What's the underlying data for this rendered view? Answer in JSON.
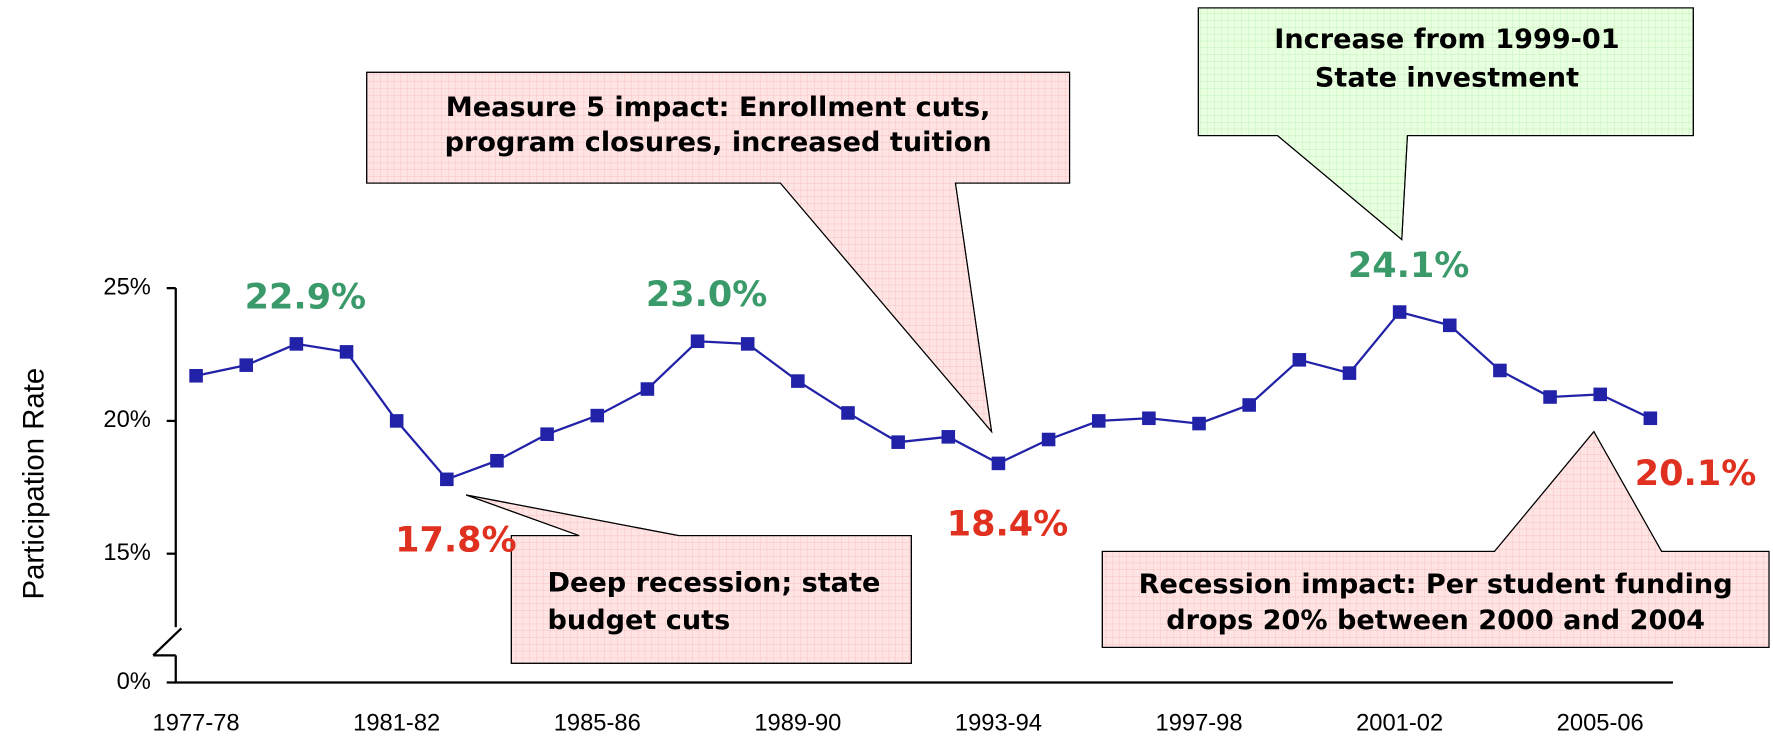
{
  "chart_data": {
    "type": "line",
    "y_axis_label": "Participation Rate",
    "categories": [
      "1977-78",
      null,
      null,
      null,
      "1981-82",
      null,
      null,
      null,
      "1985-86",
      null,
      null,
      null,
      "1989-90",
      null,
      null,
      null,
      "1993-94",
      null,
      null,
      null,
      "1997-98",
      null,
      null,
      null,
      "2001-02",
      null,
      null,
      null,
      "2005-06",
      null
    ],
    "series": [
      {
        "name": "Participation Rate",
        "color": "#2222a8",
        "values": [
          21.7,
          22.1,
          22.9,
          22.6,
          20.0,
          17.8,
          18.5,
          19.5,
          20.2,
          21.2,
          23.0,
          22.9,
          21.5,
          20.3,
          19.2,
          19.4,
          18.4,
          19.3,
          20.0,
          20.1,
          19.9,
          20.6,
          22.3,
          21.8,
          24.1,
          23.6,
          21.9,
          20.9,
          21.0,
          20.1
        ],
        "value_labels": [
          null,
          null,
          "22.9%",
          null,
          null,
          "17.8%",
          null,
          null,
          null,
          null,
          "23.0%",
          null,
          null,
          null,
          null,
          null,
          "18.4%",
          null,
          null,
          null,
          null,
          null,
          null,
          null,
          "24.1%",
          null,
          null,
          null,
          null,
          "20.1%"
        ],
        "value_label_colors": [
          null,
          null,
          "#3a9a6a",
          null,
          null,
          "#e03020",
          null,
          null,
          null,
          null,
          "#3a9a6a",
          null,
          null,
          null,
          null,
          null,
          "#e03020",
          null,
          null,
          null,
          null,
          null,
          null,
          null,
          "#3a9a6a",
          null,
          null,
          null,
          null,
          "#e03020"
        ]
      }
    ],
    "ylim": [
      0,
      25
    ],
    "axis_break": [
      0,
      13.5
    ],
    "yticks": [
      {
        "value": 0,
        "label": "0%"
      },
      {
        "value": 15,
        "label": "15%"
      },
      {
        "value": 20,
        "label": "20%"
      },
      {
        "value": 25,
        "label": "25%"
      }
    ],
    "annotations": [
      {
        "lines": [
          "Measure 5 impact: Enrollment cuts,",
          "program closures, increased tuition"
        ],
        "fill": "#ffe4e4"
      },
      {
        "lines": [
          "Increase from 1999-01",
          "State investment"
        ],
        "fill": "#e8ffe0"
      },
      {
        "lines": [
          "Deep recession; state",
          "budget cuts"
        ],
        "fill": "#ffe4e4"
      },
      {
        "lines": [
          "Recession impact:  Per student funding",
          "drops 20% between 2000 and 2004"
        ],
        "fill": "#ffe4e4"
      }
    ]
  }
}
